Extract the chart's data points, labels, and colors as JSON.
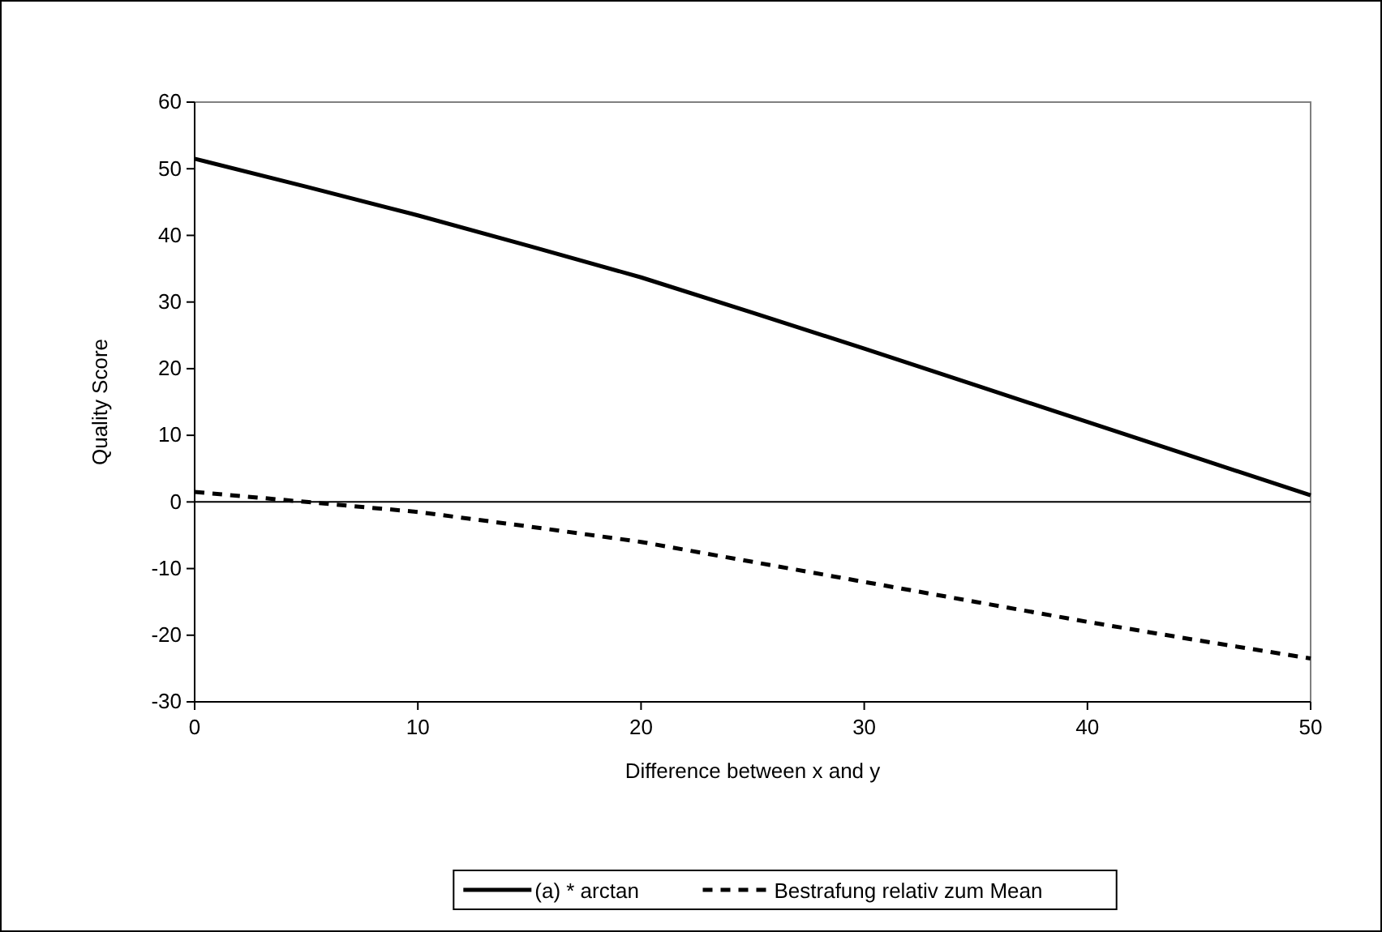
{
  "chart_data": {
    "type": "line",
    "xlabel": "Difference between  x and y",
    "ylabel": "Quality Score",
    "x": [
      0,
      5,
      10,
      15,
      20,
      25,
      30,
      35,
      40,
      45,
      50
    ],
    "series": [
      {
        "name": "(a) * arctan",
        "color": "#000000",
        "line_style": "solid",
        "values": [
          51.5,
          47.3,
          43,
          38.4,
          33.7,
          28.4,
          23,
          17.5,
          12,
          6.5,
          1
        ]
      },
      {
        "name": "Bestrafung relativ zum Mean",
        "color": "#000000",
        "line_style": "dashed",
        "values": [
          1.5,
          0,
          -1.5,
          -3.7,
          -6,
          -9,
          -12,
          -15,
          -18,
          -20.8,
          -23.5
        ]
      }
    ],
    "xlim": [
      0,
      50
    ],
    "xticks": [
      0,
      10,
      20,
      30,
      40,
      50
    ],
    "ylim": [
      -30,
      60
    ],
    "yticks": [
      -30,
      -20,
      -10,
      0,
      10,
      20,
      30,
      40,
      50,
      60
    ],
    "ref_lines": [
      {
        "axis": "y",
        "value": 0,
        "color": "#000000"
      }
    ],
    "grid": false,
    "legend": "bottom",
    "marker": "none"
  }
}
